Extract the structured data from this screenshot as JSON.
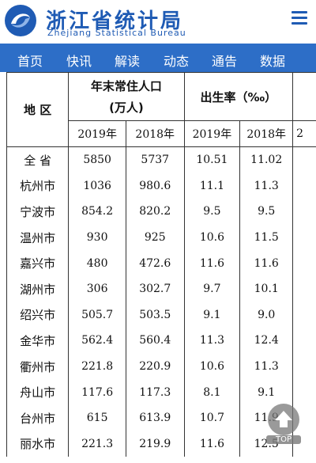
{
  "brand": {
    "cn": "浙江省统计局",
    "en": "Zhejiang Statistical Bureau"
  },
  "nav": [
    "首页",
    "快讯",
    "解读",
    "动态",
    "通告",
    "数据"
  ],
  "table": {
    "region_header": "地 区",
    "pop_header_line1": "年末常住人口",
    "pop_header_line2": "(万人)",
    "birth_header": "出生率（‰）",
    "years": [
      "2019年",
      "2018年",
      "2019年",
      "2018年"
    ],
    "partial_year": "2",
    "rows": [
      {
        "region": "全 省",
        "pop2019": "5850",
        "pop2018": "5737",
        "br2019": "10.51",
        "br2018": "11.02"
      },
      {
        "region": "杭州市",
        "pop2019": "1036",
        "pop2018": "980.6",
        "br2019": "11.1",
        "br2018": "11.3"
      },
      {
        "region": "宁波市",
        "pop2019": "854.2",
        "pop2018": "820.2",
        "br2019": "9.5",
        "br2018": "9.5"
      },
      {
        "region": "温州市",
        "pop2019": "930",
        "pop2018": "925",
        "br2019": "10.6",
        "br2018": "11.5"
      },
      {
        "region": "嘉兴市",
        "pop2019": "480",
        "pop2018": "472.6",
        "br2019": "11.6",
        "br2018": "11.6"
      },
      {
        "region": "湖州市",
        "pop2019": "306",
        "pop2018": "302.7",
        "br2019": "9.7",
        "br2018": "10.1"
      },
      {
        "region": "绍兴市",
        "pop2019": "505.7",
        "pop2018": "503.5",
        "br2019": "9.1",
        "br2018": "9.0"
      },
      {
        "region": "金华市",
        "pop2019": "562.4",
        "pop2018": "560.4",
        "br2019": "11.3",
        "br2018": "12.4"
      },
      {
        "region": "衢州市",
        "pop2019": "221.8",
        "pop2018": "220.9",
        "br2019": "10.6",
        "br2018": "11.3"
      },
      {
        "region": "舟山市",
        "pop2019": "117.6",
        "pop2018": "117.3",
        "br2019": "8.1",
        "br2018": "9.1"
      },
      {
        "region": "台州市",
        "pop2019": "615",
        "pop2018": "613.9",
        "br2019": "10.7",
        "br2018": "11.9"
      },
      {
        "region": "丽水市",
        "pop2019": "221.3",
        "pop2018": "219.9",
        "br2019": "11.6",
        "br2018": "12.5"
      }
    ]
  },
  "top_button": "TOP"
}
